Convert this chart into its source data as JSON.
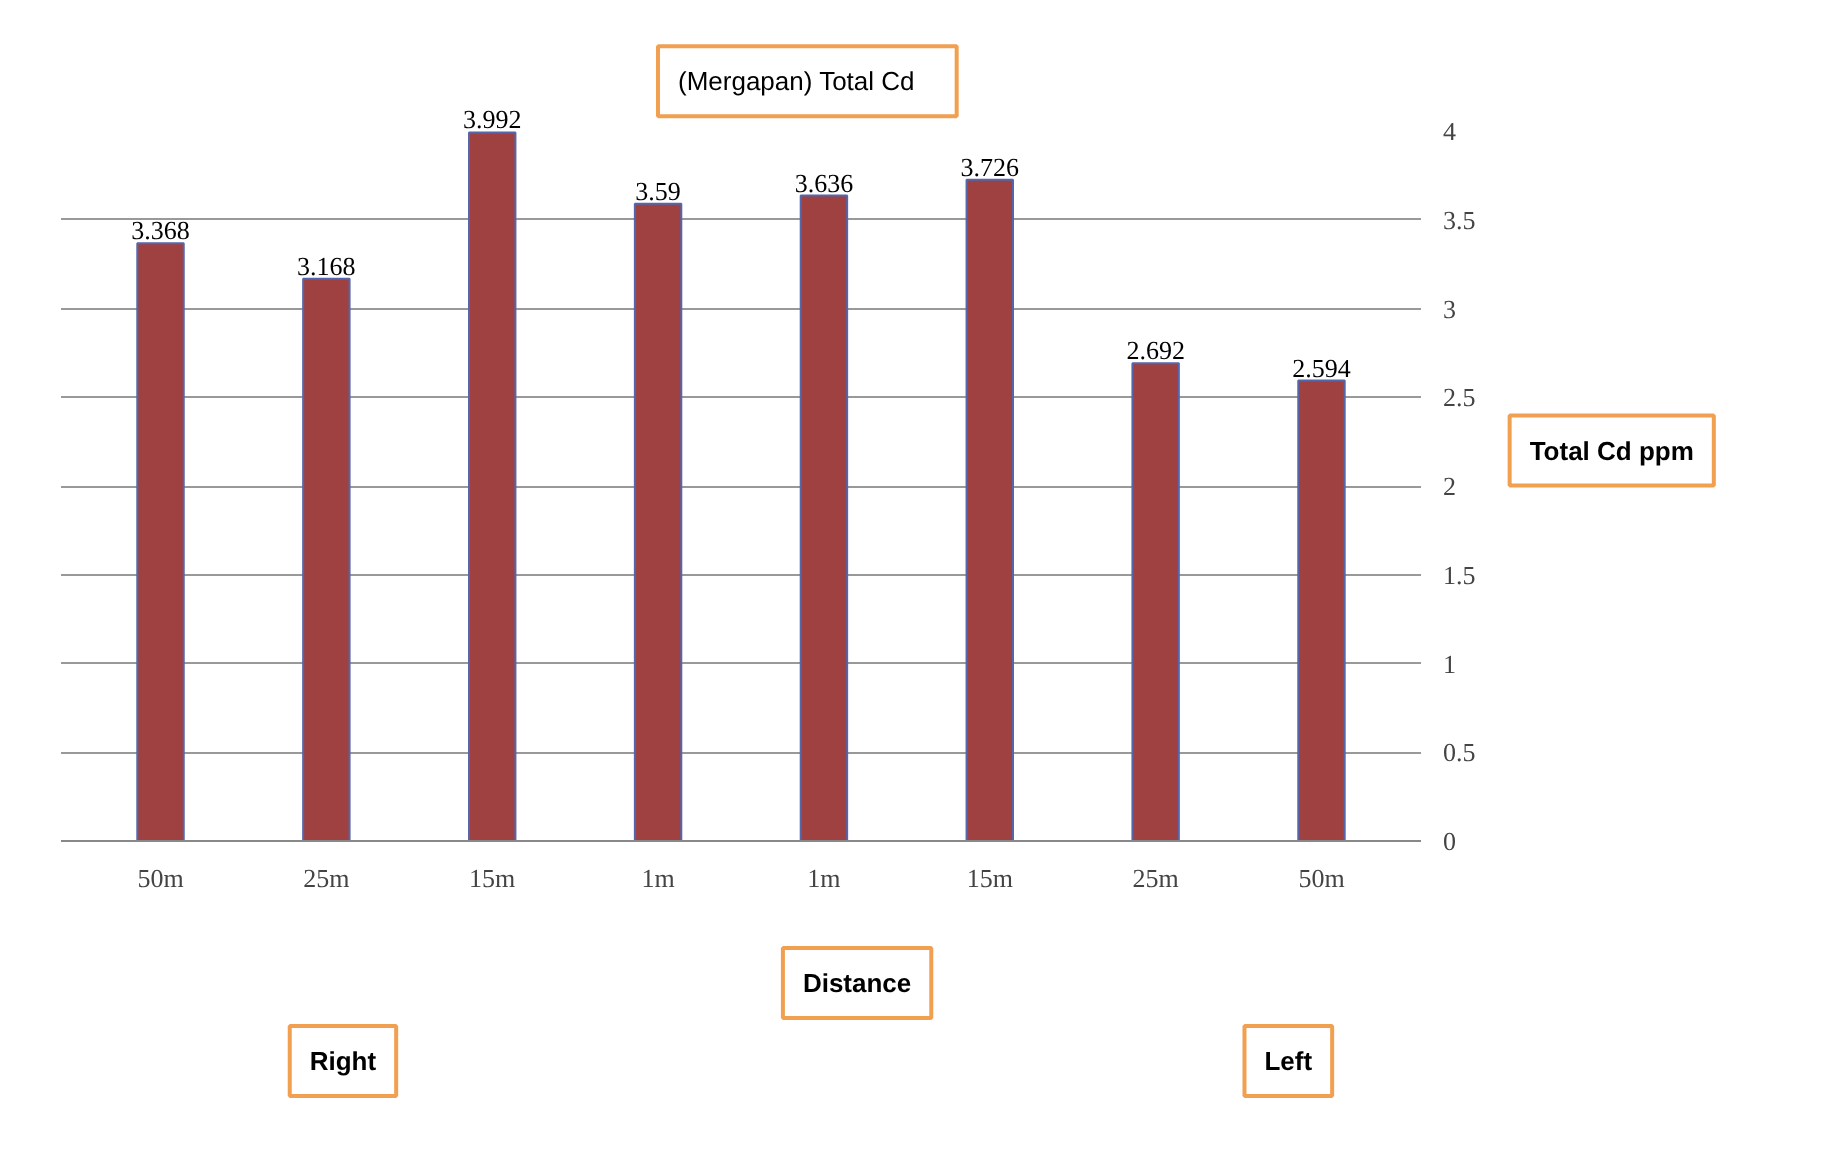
{
  "chart_data": {
    "type": "bar",
    "title": "(Mergapan)   Total  Cd",
    "xlabel": "Distance",
    "ylabel": "Total Cd ppm",
    "categories": [
      "50m",
      "25m",
      "15m",
      "1m",
      "1m",
      "15m",
      "25m",
      "50m"
    ],
    "values": [
      3.368,
      3.168,
      3.992,
      3.59,
      3.636,
      3.726,
      2.692,
      2.594
    ],
    "color": "#9e4140",
    "ylim": [
      0,
      4
    ],
    "yticks": [
      0,
      0.5,
      1,
      1.5,
      2,
      2.5,
      3,
      3.5,
      4
    ],
    "grid": "y",
    "data_labels": true,
    "annotations": [
      "Right",
      "Left"
    ]
  }
}
